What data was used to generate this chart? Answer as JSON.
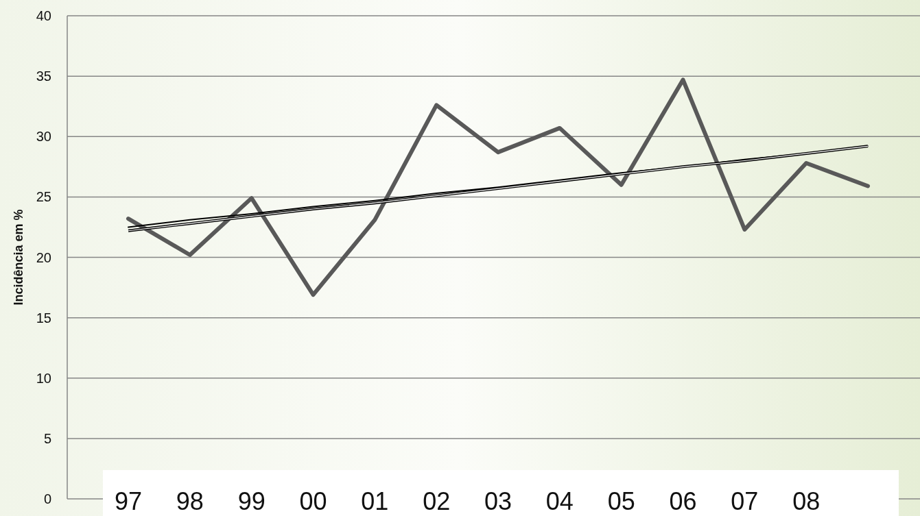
{
  "chart_data": {
    "type": "line",
    "ylabel": "Incidência em %",
    "categories": [
      "97",
      "98",
      "99",
      "00",
      "01",
      "02",
      "03",
      "04",
      "05",
      "06",
      "07",
      "08",
      null
    ],
    "series": [
      {
        "color": "#595959",
        "values": [
          23.2,
          20.2,
          24.9,
          16.9,
          23.1,
          32.6,
          28.7,
          30.7,
          26.0,
          34.7,
          22.3,
          27.8,
          25.9
        ]
      },
      {
        "color": "#000000",
        "values": [
          22.5,
          23.1,
          23.6,
          24.2,
          24.7,
          25.3,
          25.8,
          26.4,
          27.0,
          27.5,
          28.1,
          28.6,
          29.2
        ]
      },
      {
        "color": "#000000",
        "values": [
          22.2,
          22.8,
          23.4,
          24.0,
          24.5,
          25.1,
          25.7,
          26.3,
          26.9,
          27.5,
          28.0,
          28.6,
          29.2
        ]
      }
    ],
    "ylim": [
      0,
      40
    ],
    "yticks": [
      0,
      5,
      10,
      15,
      20,
      25,
      30,
      35,
      40
    ],
    "grid": "y",
    "marker": "none",
    "line_style": "solid"
  }
}
